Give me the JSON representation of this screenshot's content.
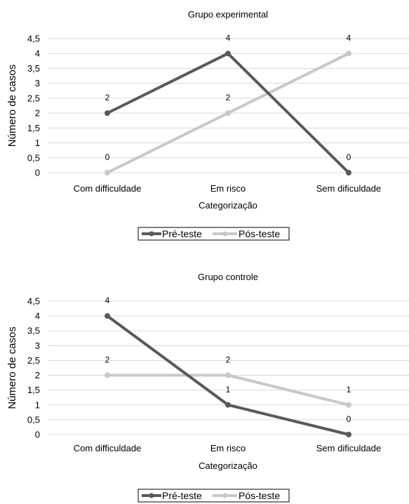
{
  "chart_data": [
    {
      "type": "line",
      "title": "Grupo experimental",
      "xlabel": "Categorização",
      "ylabel": "Número de casos",
      "categories": [
        "Com difficuldade",
        "Em risco",
        "Sem dificuldade"
      ],
      "yticks": [
        "0",
        "0,5",
        "1",
        "1,5",
        "2",
        "2,5",
        "3",
        "3,5",
        "4",
        "4,5"
      ],
      "ylim": [
        0,
        4.5
      ],
      "grid": true,
      "legend_position": "bottom",
      "series": [
        {
          "name": "Pré-teste",
          "values": [
            2,
            4,
            0
          ],
          "labels": [
            "2",
            "4",
            "0"
          ],
          "color": "#595959"
        },
        {
          "name": "Pós-teste",
          "values": [
            0,
            2,
            4
          ],
          "labels": [
            "0",
            "2",
            "4"
          ],
          "color": "#c8c8c8"
        }
      ]
    },
    {
      "type": "line",
      "title": "Grupo controle",
      "xlabel": "Categorização",
      "ylabel": "Número de casos",
      "categories": [
        "Com difficuldade",
        "Em risco",
        "Sem dificuldade"
      ],
      "yticks": [
        "0",
        "0,5",
        "1",
        "1,5",
        "2",
        "2,5",
        "3",
        "3,5",
        "4",
        "4,5"
      ],
      "ylim": [
        0,
        4.5
      ],
      "grid": true,
      "legend_position": "bottom",
      "series": [
        {
          "name": "Pré-teste",
          "values": [
            4,
            1,
            0
          ],
          "labels": [
            "4",
            "1",
            "0"
          ],
          "color": "#595959"
        },
        {
          "name": "Pós-teste",
          "values": [
            2,
            2,
            1
          ],
          "labels": [
            "2",
            "2",
            "1"
          ],
          "color": "#c8c8c8"
        }
      ]
    }
  ]
}
